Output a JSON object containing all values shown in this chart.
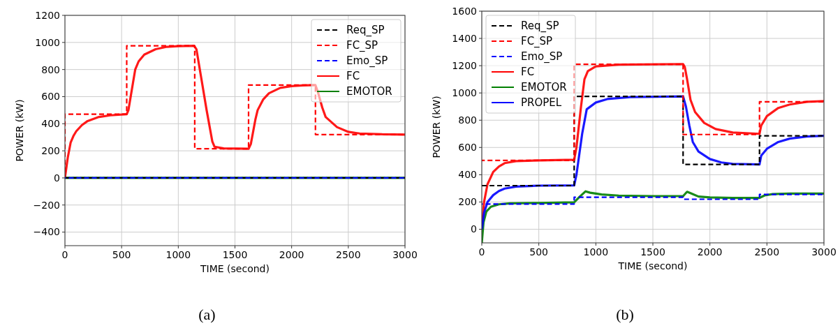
{
  "chart_data": [
    {
      "type": "line",
      "xlabel": "TIME (second)",
      "ylabel": "POWER (kW)",
      "annotations": [
        "(a)"
      ],
      "xlim": [
        0,
        3000
      ],
      "xticks": [
        0,
        500,
        1000,
        1500,
        2000,
        2500,
        3000
      ],
      "ylim": [
        -500,
        1200
      ],
      "yticks": [
        -400,
        -200,
        0,
        200,
        400,
        600,
        800,
        1000,
        1200
      ],
      "grid": true,
      "legend": "top right",
      "series": [
        {
          "name": "Req_SP",
          "type": "step",
          "color": "#000000",
          "line_style": "dashed",
          "x": [
            0,
            3000
          ],
          "values": [
            0,
            0
          ]
        },
        {
          "name": "FC_SP",
          "type": "step",
          "color": "#ff0000",
          "line_style": "dashed",
          "x": [
            0,
            0,
            545,
            1145,
            1620,
            2210,
            3000
          ],
          "values": [
            0,
            470,
            975,
            215,
            685,
            320,
            320
          ]
        },
        {
          "name": "Emo_SP",
          "type": "step",
          "color": "#0000ff",
          "line_style": "dashed",
          "x": [
            0,
            3000
          ],
          "values": [
            0,
            0
          ]
        },
        {
          "name": "FC",
          "type": "line",
          "color": "#ff0000",
          "line_style": "solid",
          "x": [
            0,
            25,
            50,
            75,
            100,
            150,
            200,
            300,
            400,
            545,
            560,
            600,
            620,
            650,
            700,
            800,
            900,
            1000,
            1140,
            1160,
            1200,
            1250,
            1300,
            1320,
            1400,
            1620,
            1640,
            1680,
            1700,
            1750,
            1800,
            1900,
            2000,
            2100,
            2210,
            2230,
            2270,
            2300,
            2400,
            2500,
            2600,
            2800,
            3000
          ],
          "values": [
            0,
            150,
            260,
            310,
            345,
            390,
            420,
            450,
            462,
            470,
            500,
            700,
            800,
            860,
            910,
            950,
            968,
            973,
            975,
            950,
            750,
            500,
            270,
            230,
            218,
            215,
            250,
            430,
            500,
            580,
            625,
            665,
            678,
            683,
            685,
            640,
            520,
            450,
            375,
            340,
            328,
            322,
            320
          ]
        },
        {
          "name": "EMOTOR",
          "type": "line",
          "color": "#008000",
          "line_style": "solid",
          "x": [
            0,
            3000
          ],
          "values": [
            0,
            0
          ]
        }
      ]
    },
    {
      "type": "line",
      "xlabel": "TIME (second)",
      "ylabel": "POWER (kW)",
      "annotations": [
        "(b)"
      ],
      "xlim": [
        0,
        3000
      ],
      "xticks": [
        0,
        500,
        1000,
        1500,
        2000,
        2500,
        3000
      ],
      "ylim": [
        -100,
        1600
      ],
      "yticks": [
        0,
        200,
        400,
        600,
        800,
        1000,
        1200,
        1400,
        1600
      ],
      "grid": true,
      "legend": "top left",
      "series": [
        {
          "name": "Req_SP",
          "type": "step",
          "color": "#000000",
          "line_style": "dashed",
          "x": [
            0,
            810,
            1765,
            2435,
            3000
          ],
          "values": [
            320,
            975,
            475,
            685,
            685
          ]
        },
        {
          "name": "FC_SP",
          "type": "step",
          "color": "#ff0000",
          "line_style": "dashed",
          "x": [
            0,
            810,
            1765,
            2435,
            3000
          ],
          "values": [
            505,
            1210,
            695,
            935,
            935
          ]
        },
        {
          "name": "Emo_SP",
          "type": "step",
          "color": "#0000ff",
          "line_style": "dashed",
          "x": [
            0,
            810,
            1765,
            2435,
            3000
          ],
          "values": [
            185,
            235,
            220,
            255,
            255
          ]
        },
        {
          "name": "FC",
          "type": "line",
          "color": "#ff0000",
          "line_style": "solid",
          "x": [
            0,
            20,
            50,
            100,
            150,
            200,
            300,
            500,
            810,
            830,
            870,
            900,
            930,
            1000,
            1200,
            1765,
            1780,
            1800,
            1830,
            1870,
            1950,
            2050,
            2200,
            2435,
            2450,
            2500,
            2600,
            2700,
            2850,
            3000
          ],
          "values": [
            0,
            200,
            330,
            420,
            460,
            485,
            500,
            505,
            510,
            600,
            900,
            1100,
            1160,
            1195,
            1208,
            1212,
            1190,
            1100,
            950,
            860,
            780,
            735,
            710,
            700,
            760,
            830,
            890,
            915,
            935,
            940
          ]
        },
        {
          "name": "EMOTOR",
          "type": "line",
          "color": "#008000",
          "line_style": "solid",
          "x": [
            0,
            15,
            40,
            80,
            150,
            250,
            500,
            810,
            860,
            910,
            950,
            1050,
            1200,
            1500,
            1765,
            1800,
            1830,
            1900,
            2000,
            2200,
            2435,
            2480,
            2550,
            2700,
            3000
          ],
          "values": [
            -100,
            50,
            130,
            165,
            183,
            190,
            193,
            198,
            240,
            278,
            268,
            255,
            247,
            243,
            243,
            275,
            265,
            240,
            233,
            230,
            230,
            248,
            258,
            262,
            262
          ]
        },
        {
          "name": "PROPEL",
          "type": "line",
          "color": "#0000ff",
          "line_style": "solid",
          "x": [
            0,
            20,
            50,
            100,
            150,
            200,
            300,
            500,
            810,
            830,
            880,
            920,
            1000,
            1100,
            1300,
            1765,
            1790,
            1820,
            1850,
            1900,
            2000,
            2100,
            2200,
            2435,
            2450,
            2500,
            2600,
            2700,
            2850,
            3000
          ],
          "values": [
            0,
            120,
            200,
            250,
            280,
            298,
            313,
            320,
            322,
            400,
            700,
            880,
            930,
            955,
            970,
            975,
            900,
            760,
            640,
            570,
            515,
            490,
            480,
            475,
            540,
            590,
            640,
            665,
            680,
            685
          ]
        }
      ]
    }
  ]
}
